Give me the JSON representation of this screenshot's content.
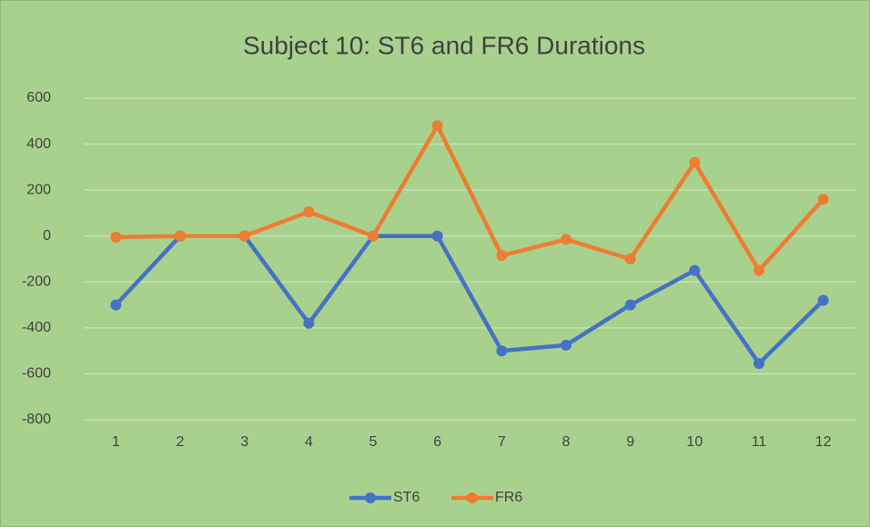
{
  "chart_data": {
    "type": "line",
    "title": "Subject 10: ST6 and FR6 Durations",
    "categories": [
      "1",
      "2",
      "3",
      "4",
      "5",
      "6",
      "7",
      "8",
      "9",
      "10",
      "11",
      "12"
    ],
    "series": [
      {
        "name": "ST6",
        "color": "#4472c4",
        "values": [
          -300,
          0,
          0,
          -380,
          0,
          0,
          -500,
          -475,
          -300,
          -150,
          -555,
          -280
        ]
      },
      {
        "name": "FR6",
        "color": "#ed7d31",
        "values": [
          -5,
          0,
          0,
          105,
          0,
          480,
          -85,
          -15,
          -100,
          320,
          -150,
          160
        ]
      }
    ],
    "ylim": [
      -800,
      600
    ],
    "yticks": [
      -800,
      -600,
      -400,
      -200,
      0,
      200,
      400,
      600
    ],
    "grid": true,
    "legend": "bottom",
    "background": "#a9d18e"
  }
}
